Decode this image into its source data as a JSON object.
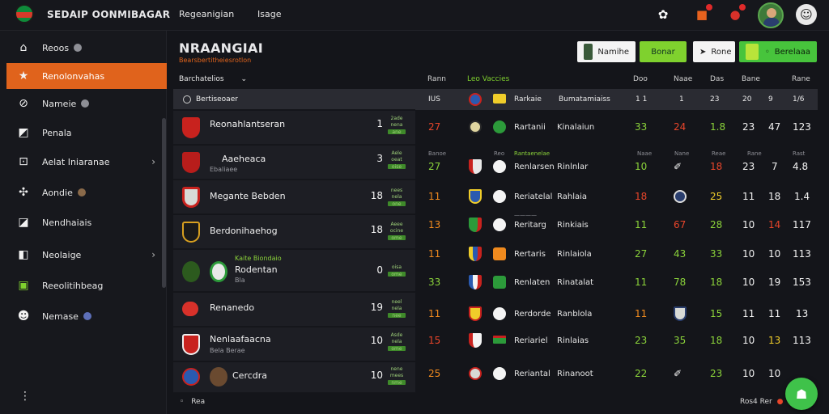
{
  "app": {
    "brand": "SEDAIP OONMIBAGAR"
  },
  "topnav": {
    "link1": "Regeanigian",
    "link2": "Isage"
  },
  "sidebar": {
    "items": [
      {
        "label": "Reoos"
      },
      {
        "label": "Renolonvahas"
      },
      {
        "label": "Nameie"
      },
      {
        "label": "Penala"
      },
      {
        "label": "Aelat Iniaranae"
      },
      {
        "label": "Aondie"
      },
      {
        "label": "Nendhaiais"
      },
      {
        "label": "Neolaige"
      },
      {
        "label": "Reeolitihbeag"
      },
      {
        "label": "Nemase"
      }
    ]
  },
  "main": {
    "title": "NRAANGIAI",
    "subtitle": "Bearsbertitheiesrotlon",
    "buttons": {
      "b1": "Namihe",
      "b2": "Bonar",
      "b3": "Rone",
      "b4": "Berelaaa"
    },
    "filter": "Barchatelios",
    "col_headers": [
      "Rann",
      "Leo Vaccies",
      "Doo",
      "Naae",
      "Das",
      "Bane",
      "Rane"
    ]
  },
  "left_table": {
    "header": "Bertiseoaer",
    "rows": [
      {
        "name": "Reonahlantseran",
        "sub": "",
        "num": "1",
        "m1": "2ade",
        "m2": "nena",
        "m3": "ane",
        "crest": "#c8221e"
      },
      {
        "name": "Aaeheaca",
        "sub": "Ebaliaee",
        "num": "3",
        "m1": "Aele",
        "m2": "oeat",
        "m3": "oise",
        "crest": "#b81d1b"
      },
      {
        "name": "Megante Bebden",
        "sub": "",
        "num": "18",
        "m1": "nees",
        "m2": "nela",
        "m3": "one",
        "crest": "#d8dad6"
      },
      {
        "name": "Berdonihaehog",
        "sub": "",
        "num": "18",
        "m1": "Aeee",
        "m2": "ocine",
        "m3": "ome",
        "crest": "#1a1a1a"
      },
      {
        "name": "Rodentan",
        "sub": "Bla",
        "num": "0",
        "m1": "Kaite Biondaio",
        "m2": "oisa",
        "m3": "ome",
        "crest": "#2c9a3a"
      },
      {
        "name": "Renanedo",
        "sub": "",
        "num": "19",
        "m1": "neel",
        "m2": "nela",
        "m3": "nee",
        "crest": "#d8312a"
      },
      {
        "name": "Nenlaafaacna",
        "sub": "Bela Berae",
        "num": "10",
        "m1": "Asde",
        "m2": "nela",
        "m3": "ome",
        "crest": "#c8221e"
      },
      {
        "name": "Cercdra",
        "sub": "",
        "num": "10",
        "m1": "nene",
        "m2": "mees",
        "m3": "nme",
        "crest": "#2a5ab0"
      }
    ]
  },
  "right_table": {
    "header": {
      "c1": "IUS",
      "team": "Rarkaie",
      "club": "Bumatamiaiss",
      "d1": "1 1",
      "d2": "1",
      "d3": "23",
      "d4": "20",
      "d5": "9",
      "d6": "1/6"
    },
    "rows": [
      {
        "rank": "27",
        "team": "Rartanii",
        "club": "Kinalaiun",
        "v1": "33",
        "v2": "24",
        "v3": "1.8",
        "v4": "23",
        "v5": "47",
        "v6": "123"
      },
      {
        "rank": "27",
        "team": "Renlarsen",
        "club": "Rinlnlar",
        "v1": "10",
        "v2": "",
        "v3": "18",
        "v4": "23",
        "v5": "7",
        "v6": "4.8"
      },
      {
        "rank": "11",
        "team": "Reriatelal",
        "club": "Rahlaia",
        "v1": "18",
        "v2": "",
        "v3": "25",
        "v4": "11",
        "v5": "18",
        "v6": "1.4"
      },
      {
        "rank": "13",
        "team": "Reritarg",
        "club": "Rinkiais",
        "v1": "11",
        "v2": "67",
        "v3": "28",
        "v4": "10",
        "v5": "14",
        "v6": "117"
      },
      {
        "rank": "11",
        "team": "Rertaris",
        "club": "Rinlaiola",
        "v1": "27",
        "v2": "43",
        "v3": "33",
        "v4": "10",
        "v5": "10",
        "v6": "113"
      },
      {
        "rank": "33",
        "team": "Renlaten",
        "club": "Rinatalat",
        "v1": "11",
        "v2": "78",
        "v3": "18",
        "v4": "10",
        "v5": "19",
        "v6": "153"
      },
      {
        "rank": "11",
        "team": "Rerdorde",
        "club": "Ranblola",
        "v1": "11",
        "v2": "",
        "v3": "15",
        "v4": "11",
        "v5": "11",
        "v6": "13"
      },
      {
        "rank": "15",
        "team": "Reriariel",
        "club": "Rinlaias",
        "v1": "23",
        "v2": "35",
        "v3": "18",
        "v4": "10",
        "v5": "13",
        "v6": "113"
      },
      {
        "rank": "25",
        "team": "Reriantal",
        "club": "Rinanoot",
        "v1": "22",
        "v2": "",
        "v3": "23",
        "v4": "10",
        "v5": "10",
        "v6": "11"
      }
    ],
    "mini_headers": {
      "a": "Banoe",
      "b": "Reo",
      "c": "Rantaenelae",
      "d": "Naae",
      "e": "Nane",
      "f": "Reae",
      "g": "Rane",
      "h": "Rast"
    }
  },
  "footer": {
    "left": "Rea",
    "right": "Ros4 Rer"
  },
  "colors": {
    "accent": "#e0631c",
    "green": "#7fd12e",
    "red": "#e8452a"
  }
}
